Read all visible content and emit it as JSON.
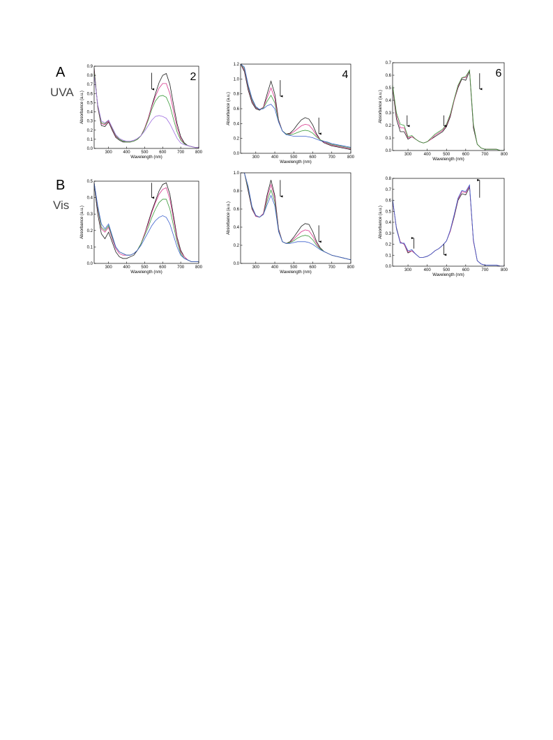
{
  "panels": [
    {
      "letter": "A",
      "condition": "UVA"
    },
    {
      "letter": "B",
      "condition": "Vis"
    }
  ],
  "chart_data": [
    {
      "type": "line",
      "title": "2",
      "xlabel": "Wavelength (nm)",
      "ylabel": "Absorbance (a.u.)",
      "x": [
        220,
        240,
        260,
        280,
        300,
        320,
        340,
        360,
        380,
        400,
        420,
        440,
        460,
        480,
        500,
        520,
        540,
        560,
        580,
        600,
        620,
        640,
        660,
        680,
        700,
        720,
        740,
        760,
        780,
        800
      ],
      "xlim": [
        220,
        800
      ],
      "xticks": [
        300,
        400,
        500,
        600,
        700,
        800
      ],
      "ylim": [
        0,
        0.9
      ],
      "yticks": [
        {
          "value": 0,
          "label": "0.0"
        },
        0.1,
        0.2,
        0.3,
        0.4,
        0.5,
        0.6,
        0.7,
        0.8,
        0.9
      ],
      "series": [
        {
          "color": "#1a1a1a",
          "values": [
            0.88,
            0.45,
            0.25,
            0.24,
            0.29,
            0.2,
            0.12,
            0.09,
            0.07,
            0.07,
            0.07,
            0.08,
            0.1,
            0.14,
            0.22,
            0.33,
            0.47,
            0.6,
            0.72,
            0.8,
            0.82,
            0.7,
            0.48,
            0.27,
            0.13,
            0.06,
            0.03,
            0.02,
            0.01,
            0.01
          ]
        },
        {
          "color": "#d6338a",
          "values": [
            0.86,
            0.46,
            0.27,
            0.26,
            0.3,
            0.21,
            0.13,
            0.1,
            0.08,
            0.07,
            0.07,
            0.08,
            0.1,
            0.14,
            0.22,
            0.33,
            0.46,
            0.57,
            0.66,
            0.71,
            0.71,
            0.6,
            0.41,
            0.23,
            0.11,
            0.05,
            0.03,
            0.02,
            0.01,
            0.01
          ]
        },
        {
          "color": "#3a9a3a",
          "values": [
            0.84,
            0.47,
            0.28,
            0.27,
            0.31,
            0.22,
            0.14,
            0.1,
            0.08,
            0.07,
            0.07,
            0.08,
            0.1,
            0.14,
            0.21,
            0.31,
            0.43,
            0.52,
            0.57,
            0.58,
            0.56,
            0.47,
            0.32,
            0.18,
            0.09,
            0.05,
            0.03,
            0.02,
            0.01,
            0.01
          ]
        },
        {
          "color": "#a070e0",
          "values": [
            0.8,
            0.48,
            0.3,
            0.28,
            0.31,
            0.23,
            0.15,
            0.11,
            0.09,
            0.08,
            0.08,
            0.09,
            0.11,
            0.14,
            0.19,
            0.25,
            0.31,
            0.35,
            0.36,
            0.35,
            0.33,
            0.27,
            0.19,
            0.11,
            0.06,
            0.04,
            0.03,
            0.02,
            0.01,
            0.01
          ]
        }
      ]
    },
    {
      "type": "line",
      "title": "4",
      "xlabel": "Wavelength (nm)",
      "ylabel": "Absorbance (a.u.)",
      "x": [
        220,
        240,
        260,
        280,
        300,
        320,
        340,
        360,
        380,
        400,
        420,
        440,
        460,
        480,
        500,
        520,
        540,
        560,
        580,
        600,
        620,
        640,
        660,
        680,
        700,
        720,
        740,
        760,
        780,
        800
      ],
      "xlim": [
        220,
        800
      ],
      "xticks": [
        300,
        400,
        500,
        600,
        700,
        800
      ],
      "ylim": [
        0,
        1.2
      ],
      "yticks": [
        {
          "value": 0,
          "label": "0.0"
        },
        0.2,
        0.4,
        0.6,
        0.8,
        {
          "value": 1,
          "label": "1.0"
        },
        1.2
      ],
      "series": [
        {
          "color": "#1a1a1a",
          "values": [
            1.2,
            1.1,
            0.85,
            0.68,
            0.6,
            0.58,
            0.62,
            0.8,
            0.97,
            0.8,
            0.45,
            0.3,
            0.26,
            0.27,
            0.32,
            0.39,
            0.45,
            0.48,
            0.46,
            0.38,
            0.26,
            0.18,
            0.14,
            0.12,
            0.1,
            0.09,
            0.08,
            0.07,
            0.06,
            0.05
          ]
        },
        {
          "color": "#d6338a",
          "values": [
            1.2,
            1.12,
            0.88,
            0.7,
            0.61,
            0.59,
            0.62,
            0.75,
            0.88,
            0.74,
            0.44,
            0.3,
            0.26,
            0.26,
            0.29,
            0.33,
            0.37,
            0.39,
            0.38,
            0.32,
            0.24,
            0.18,
            0.15,
            0.13,
            0.11,
            0.1,
            0.09,
            0.08,
            0.07,
            0.06
          ]
        },
        {
          "color": "#3a9a3a",
          "values": [
            1.2,
            1.14,
            0.9,
            0.72,
            0.62,
            0.59,
            0.61,
            0.7,
            0.78,
            0.68,
            0.43,
            0.3,
            0.26,
            0.25,
            0.26,
            0.28,
            0.3,
            0.31,
            0.3,
            0.27,
            0.22,
            0.18,
            0.16,
            0.14,
            0.12,
            0.11,
            0.1,
            0.09,
            0.08,
            0.07
          ]
        },
        {
          "color": "#3a5fcd",
          "values": [
            1.2,
            1.16,
            0.92,
            0.74,
            0.63,
            0.59,
            0.6,
            0.64,
            0.66,
            0.6,
            0.42,
            0.3,
            0.25,
            0.24,
            0.23,
            0.23,
            0.23,
            0.23,
            0.22,
            0.21,
            0.19,
            0.17,
            0.16,
            0.15,
            0.13,
            0.12,
            0.11,
            0.1,
            0.09,
            0.08
          ]
        }
      ]
    },
    {
      "type": "line",
      "title": "6",
      "xlabel": "Wavelength (nm)",
      "ylabel": "Absorbance (a.u.)",
      "x": [
        220,
        240,
        260,
        280,
        300,
        320,
        340,
        360,
        380,
        400,
        420,
        440,
        460,
        480,
        500,
        520,
        540,
        560,
        580,
        600,
        620,
        640,
        660,
        680,
        700,
        720,
        740,
        760,
        780,
        800
      ],
      "xlim": [
        220,
        800
      ],
      "xticks": [
        300,
        400,
        500,
        600,
        700,
        800
      ],
      "ylim": [
        0,
        0.7
      ],
      "yticks": [
        {
          "value": 0,
          "label": "0.0"
        },
        0.1,
        0.2,
        0.3,
        0.4,
        0.5,
        0.6,
        0.7
      ],
      "series": [
        {
          "color": "#1a1a1a",
          "values": [
            0.5,
            0.25,
            0.15,
            0.15,
            0.09,
            0.11,
            0.09,
            0.07,
            0.06,
            0.07,
            0.09,
            0.11,
            0.13,
            0.15,
            0.19,
            0.27,
            0.4,
            0.5,
            0.57,
            0.56,
            0.63,
            0.18,
            0.05,
            0.02,
            0.01,
            0.01,
            0.01,
            0.01,
            0.0,
            0.0
          ]
        },
        {
          "color": "#d6338a",
          "values": [
            0.51,
            0.28,
            0.18,
            0.18,
            0.1,
            0.11,
            0.09,
            0.07,
            0.06,
            0.07,
            0.09,
            0.12,
            0.14,
            0.16,
            0.2,
            0.28,
            0.4,
            0.51,
            0.58,
            0.58,
            0.64,
            0.2,
            0.05,
            0.02,
            0.01,
            0.01,
            0.01,
            0.01,
            0.0,
            0.0
          ]
        },
        {
          "color": "#3a9a3a",
          "values": [
            0.52,
            0.3,
            0.21,
            0.2,
            0.11,
            0.12,
            0.09,
            0.07,
            0.06,
            0.07,
            0.1,
            0.13,
            0.15,
            0.17,
            0.21,
            0.29,
            0.41,
            0.52,
            0.58,
            0.59,
            0.64,
            0.21,
            0.05,
            0.02,
            0.01,
            0.01,
            0.01,
            0.01,
            0.0,
            0.0
          ]
        }
      ]
    },
    {
      "type": "line",
      "xlabel": "Wavelength (nm)",
      "ylabel": "Absorbance (a.u.)",
      "x": [
        220,
        240,
        260,
        280,
        300,
        320,
        340,
        360,
        380,
        400,
        420,
        440,
        460,
        480,
        500,
        520,
        540,
        560,
        580,
        600,
        620,
        640,
        660,
        680,
        700,
        720,
        740,
        760,
        780,
        800
      ],
      "xlim": [
        220,
        800
      ],
      "xticks": [
        300,
        400,
        500,
        600,
        700,
        800
      ],
      "ylim": [
        0,
        0.5
      ],
      "yticks": [
        {
          "value": 0,
          "label": "0.0"
        },
        0.1,
        0.2,
        0.3,
        0.4,
        0.5
      ],
      "series": [
        {
          "color": "#1a1a1a",
          "values": [
            0.48,
            0.3,
            0.18,
            0.15,
            0.19,
            0.13,
            0.07,
            0.04,
            0.03,
            0.03,
            0.04,
            0.05,
            0.08,
            0.12,
            0.18,
            0.25,
            0.32,
            0.38,
            0.44,
            0.48,
            0.49,
            0.42,
            0.29,
            0.16,
            0.08,
            0.04,
            0.02,
            0.01,
            0.01,
            0.01
          ]
        },
        {
          "color": "#d6338a",
          "values": [
            0.49,
            0.33,
            0.21,
            0.19,
            0.22,
            0.15,
            0.09,
            0.06,
            0.05,
            0.05,
            0.05,
            0.06,
            0.08,
            0.12,
            0.18,
            0.24,
            0.31,
            0.37,
            0.42,
            0.45,
            0.46,
            0.39,
            0.27,
            0.15,
            0.07,
            0.04,
            0.02,
            0.01,
            0.01,
            0.01
          ]
        },
        {
          "color": "#3a9a3a",
          "values": [
            0.49,
            0.34,
            0.22,
            0.2,
            0.23,
            0.16,
            0.1,
            0.07,
            0.06,
            0.05,
            0.05,
            0.06,
            0.08,
            0.12,
            0.17,
            0.22,
            0.28,
            0.33,
            0.37,
            0.39,
            0.39,
            0.33,
            0.23,
            0.13,
            0.06,
            0.03,
            0.02,
            0.01,
            0.01,
            0.01
          ]
        },
        {
          "color": "#3a5fcd",
          "values": [
            0.49,
            0.35,
            0.24,
            0.21,
            0.24,
            0.17,
            0.1,
            0.07,
            0.06,
            0.05,
            0.05,
            0.06,
            0.08,
            0.11,
            0.15,
            0.19,
            0.23,
            0.26,
            0.28,
            0.29,
            0.28,
            0.24,
            0.17,
            0.1,
            0.05,
            0.03,
            0.02,
            0.01,
            0.01,
            0.01
          ]
        }
      ]
    },
    {
      "type": "line",
      "xlabel": "Wavelength (nm)",
      "ylabel": "Absorbance (a.u.)",
      "x": [
        220,
        240,
        260,
        280,
        300,
        320,
        340,
        360,
        380,
        400,
        420,
        440,
        460,
        480,
        500,
        520,
        540,
        560,
        580,
        600,
        620,
        640,
        660,
        680,
        700,
        720,
        740,
        760,
        780,
        800
      ],
      "xlim": [
        220,
        800
      ],
      "xticks": [
        300,
        400,
        500,
        600,
        700,
        800
      ],
      "ylim": [
        0,
        1
      ],
      "yticks": [
        {
          "value": 0,
          "label": "0.0"
        },
        0.2,
        0.4,
        0.6,
        0.8,
        {
          "value": 1,
          "label": "1.0"
        }
      ],
      "series": [
        {
          "color": "#1a1a1a",
          "values": [
            1.0,
            1.0,
            0.8,
            0.6,
            0.52,
            0.51,
            0.55,
            0.76,
            0.92,
            0.75,
            0.38,
            0.24,
            0.22,
            0.24,
            0.29,
            0.35,
            0.41,
            0.44,
            0.43,
            0.35,
            0.24,
            0.17,
            0.13,
            0.11,
            0.09,
            0.08,
            0.07,
            0.06,
            0.05,
            0.04
          ]
        },
        {
          "color": "#d6338a",
          "values": [
            1.0,
            1.0,
            0.82,
            0.61,
            0.52,
            0.51,
            0.55,
            0.73,
            0.87,
            0.72,
            0.37,
            0.24,
            0.22,
            0.23,
            0.27,
            0.31,
            0.35,
            0.37,
            0.36,
            0.3,
            0.22,
            0.16,
            0.13,
            0.11,
            0.09,
            0.08,
            0.07,
            0.06,
            0.05,
            0.04
          ]
        },
        {
          "color": "#3a9a3a",
          "values": [
            1.0,
            1.0,
            0.83,
            0.62,
            0.53,
            0.51,
            0.54,
            0.69,
            0.81,
            0.68,
            0.36,
            0.24,
            0.22,
            0.23,
            0.25,
            0.28,
            0.3,
            0.31,
            0.3,
            0.26,
            0.2,
            0.16,
            0.13,
            0.11,
            0.09,
            0.08,
            0.07,
            0.06,
            0.05,
            0.04
          ]
        },
        {
          "color": "#3a5fcd",
          "values": [
            1.0,
            1.0,
            0.85,
            0.63,
            0.53,
            0.51,
            0.54,
            0.65,
            0.75,
            0.64,
            0.35,
            0.24,
            0.22,
            0.22,
            0.23,
            0.24,
            0.24,
            0.24,
            0.23,
            0.21,
            0.18,
            0.15,
            0.13,
            0.11,
            0.09,
            0.08,
            0.07,
            0.06,
            0.05,
            0.04
          ]
        }
      ]
    },
    {
      "type": "line",
      "xlabel": "Wavelength (nm)",
      "ylabel": "Absorbance (a.u.)",
      "x": [
        220,
        240,
        260,
        280,
        300,
        320,
        340,
        360,
        380,
        400,
        420,
        440,
        460,
        480,
        500,
        520,
        540,
        560,
        580,
        600,
        620,
        640,
        660,
        680,
        700,
        720,
        740,
        760,
        780,
        800
      ],
      "xlim": [
        220,
        800
      ],
      "xticks": [
        300,
        400,
        500,
        600,
        700,
        800
      ],
      "ylim": [
        0,
        0.8
      ],
      "yticks": [
        {
          "value": 0,
          "label": "0.0"
        },
        0.1,
        0.2,
        0.3,
        0.4,
        0.5,
        0.6,
        0.7,
        0.8
      ],
      "series": [
        {
          "color": "#1a1a1a",
          "values": [
            0.6,
            0.35,
            0.22,
            0.2,
            0.12,
            0.14,
            0.11,
            0.08,
            0.08,
            0.09,
            0.11,
            0.14,
            0.16,
            0.19,
            0.23,
            0.32,
            0.45,
            0.6,
            0.66,
            0.65,
            0.72,
            0.23,
            0.05,
            0.02,
            0.01,
            0.01,
            0.01,
            0.01,
            0.0,
            0.0
          ]
        },
        {
          "color": "#d6338a",
          "values": [
            0.6,
            0.34,
            0.22,
            0.2,
            0.13,
            0.14,
            0.11,
            0.08,
            0.08,
            0.09,
            0.11,
            0.14,
            0.16,
            0.19,
            0.23,
            0.32,
            0.46,
            0.61,
            0.68,
            0.67,
            0.73,
            0.23,
            0.05,
            0.02,
            0.01,
            0.01,
            0.01,
            0.01,
            0.0,
            0.0
          ]
        },
        {
          "color": "#3a5fcd",
          "values": [
            0.61,
            0.34,
            0.21,
            0.21,
            0.14,
            0.15,
            0.11,
            0.08,
            0.08,
            0.09,
            0.11,
            0.14,
            0.16,
            0.19,
            0.23,
            0.33,
            0.47,
            0.62,
            0.69,
            0.68,
            0.74,
            0.24,
            0.05,
            0.02,
            0.01,
            0.01,
            0.01,
            0.01,
            0.0,
            0.0
          ]
        }
      ]
    }
  ]
}
